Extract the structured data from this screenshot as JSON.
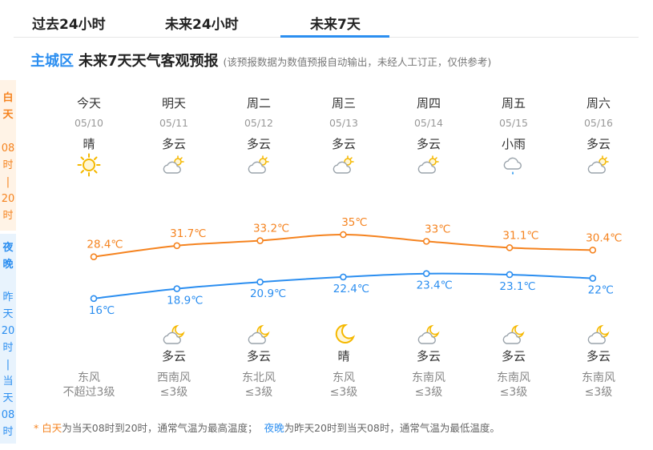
{
  "tabs": [
    {
      "label": "过去24小时",
      "active": false
    },
    {
      "label": "未来24小时",
      "active": false
    },
    {
      "label": "未来7天",
      "active": true
    }
  ],
  "heading": {
    "location": "主城区",
    "title": "未来7天天气客观预报",
    "note": "(该预报数据为数值预报自动输出，未经人工订正，仅供参考)"
  },
  "side": {
    "day_label": [
      "白",
      "天"
    ],
    "day_time": [
      "08",
      "时",
      "|",
      "20",
      "时"
    ],
    "night_label": [
      "夜",
      "晚"
    ],
    "night_time": [
      "昨",
      "天",
      "20",
      "时",
      "|",
      "当",
      "天",
      "08",
      "时"
    ]
  },
  "days": [
    {
      "name": "今天",
      "date": "05/10",
      "day_cond": "晴",
      "day_icon": "sunny-icon",
      "high": "28.4℃",
      "low": "16℃",
      "night_cond": "",
      "night_icon": "",
      "wind_dir": "东风",
      "wind_level": "不超过3级"
    },
    {
      "name": "明天",
      "date": "05/11",
      "day_cond": "多云",
      "day_icon": "partly-cloudy-day-icon",
      "high": "31.7℃",
      "low": "18.9℃",
      "night_cond": "多云",
      "night_icon": "partly-cloudy-night-icon",
      "wind_dir": "西南风",
      "wind_level": "≤3级"
    },
    {
      "name": "周二",
      "date": "05/12",
      "day_cond": "多云",
      "day_icon": "partly-cloudy-day-icon",
      "high": "33.2℃",
      "low": "20.9℃",
      "night_cond": "多云",
      "night_icon": "partly-cloudy-night-icon",
      "wind_dir": "东北风",
      "wind_level": "≤3级"
    },
    {
      "name": "周三",
      "date": "05/13",
      "day_cond": "多云",
      "day_icon": "partly-cloudy-day-icon",
      "high": "35℃",
      "low": "22.4℃",
      "night_cond": "晴",
      "night_icon": "clear-night-icon",
      "wind_dir": "东风",
      "wind_level": "≤3级"
    },
    {
      "name": "周四",
      "date": "05/14",
      "day_cond": "多云",
      "day_icon": "partly-cloudy-day-icon",
      "high": "33℃",
      "low": "23.4℃",
      "night_cond": "多云",
      "night_icon": "partly-cloudy-night-icon",
      "wind_dir": "东南风",
      "wind_level": "≤3级"
    },
    {
      "name": "周五",
      "date": "05/15",
      "day_cond": "小雨",
      "day_icon": "light-rain-icon",
      "high": "31.1℃",
      "low": "23.1℃",
      "night_cond": "多云",
      "night_icon": "partly-cloudy-night-icon",
      "wind_dir": "东南风",
      "wind_level": "≤3级"
    },
    {
      "name": "周六",
      "date": "05/16",
      "day_cond": "多云",
      "day_icon": "partly-cloudy-day-icon",
      "high": "30.4℃",
      "low": "22℃",
      "night_cond": "多云",
      "night_icon": "partly-cloudy-night-icon",
      "wind_dir": "东南风",
      "wind_level": "≤3级"
    }
  ],
  "chart_data": {
    "type": "line",
    "categories": [
      "05/10",
      "05/11",
      "05/12",
      "05/13",
      "05/14",
      "05/15",
      "05/16"
    ],
    "series": [
      {
        "values": [
          28.4,
          31.7,
          33.2,
          35,
          33,
          31.1,
          30.4
        ],
        "color": "#f5831f"
      },
      {
        "values": [
          16,
          18.9,
          20.9,
          22.4,
          23.4,
          23.1,
          22
        ],
        "color": "#2b8ef0"
      }
    ],
    "unit": "℃",
    "grid": false
  },
  "footnote": {
    "star": "* ",
    "day_word": "白天",
    "day_text": "为当天08时到20时，通常气温为最高温度；",
    "night_word": "夜晚",
    "night_text": "为昨天20时到当天08时，通常气温为最低温度。"
  },
  "colors": {
    "accent": "#2b8ef0",
    "day": "#f5831f",
    "night": "#2b8ef0"
  }
}
